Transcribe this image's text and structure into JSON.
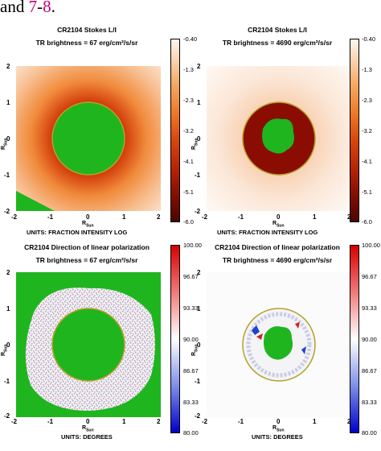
{
  "heading": {
    "prefix": "and ",
    "ref1": "7",
    "dash": "-",
    "ref2": "8",
    "suffix": "."
  },
  "panels": [
    {
      "title": "CR2104 Stokes L/I",
      "subtitle": "TR brightness = 67 erg/cm²/s/sr",
      "units": "UNITS: FRACTION INTENSITY LOG",
      "cbar": [
        "-0.40",
        "-1.3",
        "-2.3",
        "-3.2",
        "-4.1",
        "-5.1",
        "-6.0"
      ]
    },
    {
      "title": "CR2104 Stokes L/I",
      "subtitle": "TR brightness = 4690 erg/cm²/s/sr",
      "units": "UNITS: FRACTION INTENSITY LOG",
      "cbar": [
        "-0.40",
        "-1.3",
        "-2.3",
        "-3.2",
        "-4.1",
        "-5.1",
        "-6.0"
      ]
    },
    {
      "title": "CR2104 Direction of linear polarization",
      "subtitle": "TR brightness = 67 erg/cm²/s/sr",
      "units": "UNITS: DEGREES",
      "cbar": [
        "100.00",
        "96.67",
        "93.33",
        "90.00",
        "86.67",
        "83.33",
        "80.00"
      ]
    },
    {
      "title": "CR2104 Direction of linear polarization",
      "subtitle": "TR brightness = 4690 erg/cm²/s/sr",
      "units": "UNITS: DEGREES",
      "cbar": [
        "100.00",
        "96.67",
        "93.33",
        "90.00",
        "86.67",
        "83.33",
        "80.00"
      ]
    }
  ],
  "axis": {
    "ylabel": "R",
    "ylabel_sub": "Sun",
    "xlabel": "R",
    "xlabel_sub": "Sun",
    "ticks": [
      "-2",
      "-1",
      "0",
      "1",
      "2"
    ],
    "yticks": [
      "2",
      "1",
      "0",
      "-1",
      "-2"
    ]
  },
  "colors": {
    "occult": "#1fb51f",
    "limb": "#b5a12a"
  }
}
